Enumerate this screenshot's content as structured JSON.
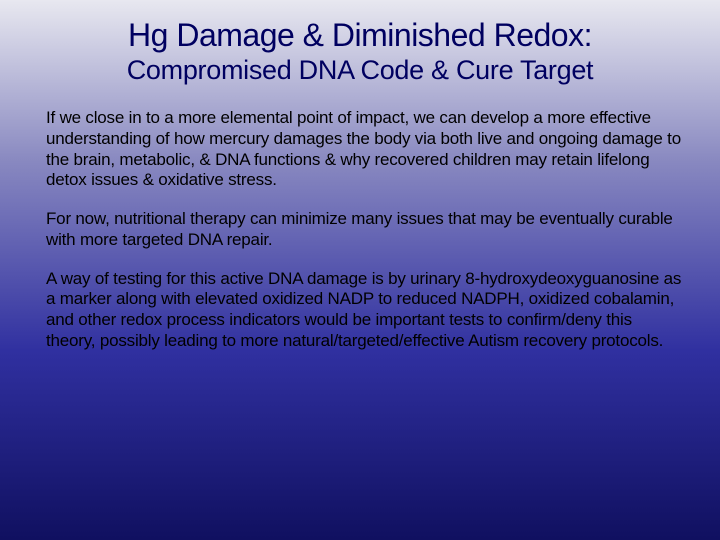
{
  "slide": {
    "title_line1": "Hg Damage & Diminished Redox:",
    "title_line2": "Compromised DNA Code & Cure Target",
    "paragraphs": [
      "If we close in to a more elemental point of impact, we can develop a more effective understanding of how mercury damages the body via both live and ongoing damage to the brain, metabolic, & DNA functions & why recovered children may retain lifelong detox issues & oxidative stress.",
      "For now, nutritional therapy can minimize many issues that may be eventually curable with more targeted DNA repair.",
      "A way of testing for this active DNA damage is by urinary 8-hydroxydeoxyguanosine as a marker along with elevated oxidized NADP to reduced NADPH, oxidized cobalamin, and other redox process indicators would be important tests to confirm/deny this theory, possibly leading to more natural/targeted/effective Autism recovery protocols."
    ],
    "colors": {
      "title_color": "#000060",
      "body_color": "#000000",
      "bg_top": "#e8e8f0",
      "bg_mid1": "#8888c0",
      "bg_mid2": "#3030a0",
      "bg_bottom": "#101060"
    },
    "typography": {
      "title1_fontsize": 32,
      "title2_fontsize": 27,
      "body_fontsize": 17,
      "font_family": "Verdana"
    }
  }
}
